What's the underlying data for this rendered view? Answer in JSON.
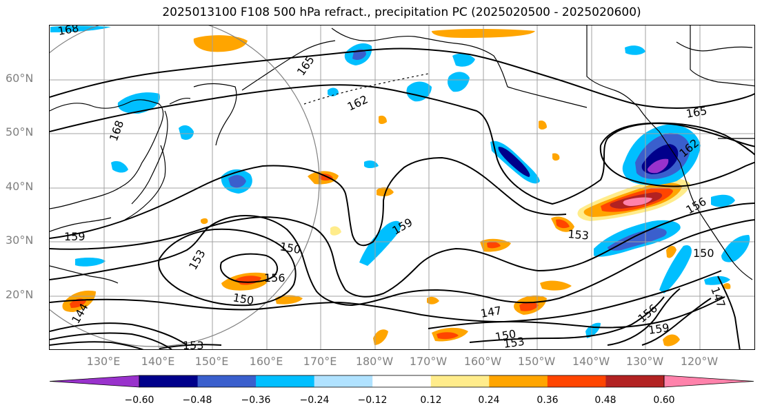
{
  "title": "2025013100 F108 500 hPa refract., precipitation PC (2025020500 - 2025020600)",
  "lat_labels": [
    "60°N",
    "50°N",
    "40°N",
    "30°N",
    "20°N"
  ],
  "lon_labels": [
    "130°E",
    "140°E",
    "150°E",
    "160°E",
    "170°E",
    "180°W",
    "170°W",
    "160°W",
    "150°W",
    "140°W",
    "130°W",
    "120°W"
  ],
  "contour_labels": [
    "168",
    "165",
    "162",
    "165",
    "162",
    "159",
    "156",
    "153",
    "150",
    "156",
    "153",
    "150",
    "159",
    "147",
    "150",
    "153",
    "156",
    "159",
    "150",
    "147",
    "144",
    "153",
    "168"
  ],
  "colorbar": {
    "ticks": [
      "−0.60",
      "−0.48",
      "−0.36",
      "−0.24",
      "−0.12",
      "0.12",
      "0.24",
      "0.36",
      "0.48",
      "0.60"
    ],
    "colors": [
      "#9932cc",
      "#00008b",
      "#3a5fcd",
      "#00bfff",
      "#b0e2ff",
      "#ffffff",
      "#ffec8b",
      "#ffa500",
      "#ff4500",
      "#b22222",
      "#ff82ab"
    ]
  },
  "colors": {
    "coast": "#000000",
    "grid": "#a0a0a0",
    "contour": "#000000",
    "circle": "#808080"
  }
}
